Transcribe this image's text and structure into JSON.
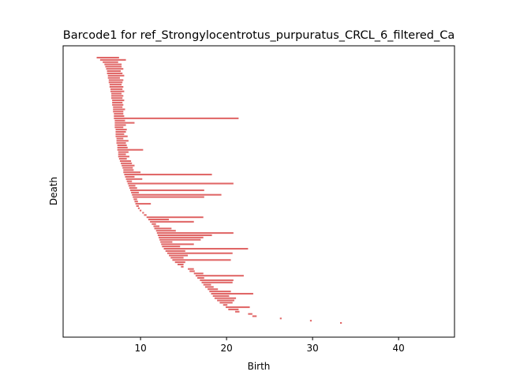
{
  "chart_data": {
    "type": "barcode",
    "title": "Barcode1 for ref_Strongylocentrotus_purpuratus_CRCL_6_filtered_Ca",
    "xlabel": "Birth",
    "ylabel": "Death",
    "xlim": [
      1,
      46.5
    ],
    "xticks": [
      10,
      20,
      30,
      40
    ],
    "xtick_labels": [
      "10",
      "20",
      "30",
      "40"
    ],
    "yticks_shown": false,
    "bar_color": "#e06666",
    "notes": "Each horizontal bar is one persistence interval [start, end]; bars stacked top to bottom.",
    "bars": [
      [
        4.9,
        7.5
      ],
      [
        5.3,
        8.3
      ],
      [
        5.6,
        7.4
      ],
      [
        5.8,
        7.8
      ],
      [
        5.9,
        7.8
      ],
      [
        6.0,
        8.0
      ],
      [
        6.1,
        7.7
      ],
      [
        6.1,
        7.9
      ],
      [
        6.2,
        8.1
      ],
      [
        6.2,
        7.6
      ],
      [
        6.3,
        8.0
      ],
      [
        6.3,
        7.9
      ],
      [
        6.4,
        7.8
      ],
      [
        6.4,
        8.0
      ],
      [
        6.5,
        7.9
      ],
      [
        6.5,
        8.1
      ],
      [
        6.6,
        7.8
      ],
      [
        6.6,
        8.0
      ],
      [
        6.6,
        7.9
      ],
      [
        6.7,
        8.1
      ],
      [
        6.7,
        7.9
      ],
      [
        6.7,
        8.0
      ],
      [
        6.8,
        7.9
      ],
      [
        6.8,
        8.2
      ],
      [
        6.8,
        8.0
      ],
      [
        6.9,
        8.0
      ],
      [
        6.9,
        8.1
      ],
      [
        6.9,
        21.4
      ],
      [
        7.0,
        8.2
      ],
      [
        7.0,
        9.3
      ],
      [
        7.0,
        8.3
      ],
      [
        7.0,
        8.0
      ],
      [
        7.1,
        8.4
      ],
      [
        7.1,
        8.3
      ],
      [
        7.1,
        8.1
      ],
      [
        7.1,
        8.5
      ],
      [
        7.2,
        8.0
      ],
      [
        7.2,
        8.6
      ],
      [
        7.2,
        8.3
      ],
      [
        7.3,
        8.4
      ],
      [
        7.3,
        8.5
      ],
      [
        7.3,
        10.3
      ],
      [
        7.4,
        8.6
      ],
      [
        7.4,
        8.3
      ],
      [
        7.4,
        8.7
      ],
      [
        7.5,
        8.4
      ],
      [
        7.6,
        8.9
      ],
      [
        7.7,
        9.0
      ],
      [
        7.8,
        9.3
      ],
      [
        7.9,
        9.1
      ],
      [
        8.0,
        9.2
      ],
      [
        8.0,
        10.0
      ],
      [
        8.1,
        18.3
      ],
      [
        8.2,
        9.3
      ],
      [
        8.3,
        10.2
      ],
      [
        8.4,
        9.0
      ],
      [
        8.5,
        20.8
      ],
      [
        8.6,
        9.4
      ],
      [
        8.7,
        9.6
      ],
      [
        8.8,
        17.4
      ],
      [
        8.9,
        9.8
      ],
      [
        9.0,
        19.4
      ],
      [
        9.1,
        17.4
      ],
      [
        9.2,
        9.6
      ],
      [
        9.3,
        9.7
      ],
      [
        9.4,
        11.2
      ],
      [
        9.5,
        9.8
      ],
      [
        9.7,
        9.9
      ],
      [
        9.9,
        10.1
      ],
      [
        10.2,
        10.4
      ],
      [
        10.4,
        10.7
      ],
      [
        10.7,
        17.3
      ],
      [
        10.9,
        13.3
      ],
      [
        11.1,
        16.2
      ],
      [
        11.3,
        11.8
      ],
      [
        11.5,
        12.2
      ],
      [
        11.6,
        13.6
      ],
      [
        11.8,
        14.1
      ],
      [
        11.9,
        20.8
      ],
      [
        12.0,
        18.3
      ],
      [
        12.1,
        17.3
      ],
      [
        12.2,
        17.0
      ],
      [
        12.3,
        13.7
      ],
      [
        12.4,
        16.2
      ],
      [
        12.5,
        14.6
      ],
      [
        12.7,
        22.5
      ],
      [
        12.9,
        15.2
      ],
      [
        13.1,
        20.7
      ],
      [
        13.3,
        15.5
      ],
      [
        13.5,
        15.0
      ],
      [
        13.7,
        20.5
      ],
      [
        14.0,
        15.2
      ],
      [
        14.3,
        15.0
      ],
      [
        14.7,
        15.0
      ],
      [
        15.5,
        16.2
      ],
      [
        15.7,
        16.3
      ],
      [
        16.2,
        17.3
      ],
      [
        16.4,
        22.0
      ],
      [
        16.6,
        17.4
      ],
      [
        16.9,
        20.8
      ],
      [
        17.1,
        20.7
      ],
      [
        17.3,
        18.2
      ],
      [
        17.5,
        18.5
      ],
      [
        17.8,
        19.0
      ],
      [
        18.0,
        20.5
      ],
      [
        18.2,
        23.1
      ],
      [
        18.4,
        20.3
      ],
      [
        18.6,
        21.1
      ],
      [
        18.9,
        20.9
      ],
      [
        19.2,
        20.7
      ],
      [
        19.6,
        20.1
      ],
      [
        19.9,
        22.7
      ],
      [
        20.2,
        21.4
      ],
      [
        21.0,
        21.5
      ],
      [
        22.5,
        23.0
      ],
      [
        23.0,
        23.5
      ],
      [
        26.2,
        26.4
      ],
      [
        29.7,
        29.9
      ],
      [
        33.2,
        33.4
      ]
    ]
  }
}
